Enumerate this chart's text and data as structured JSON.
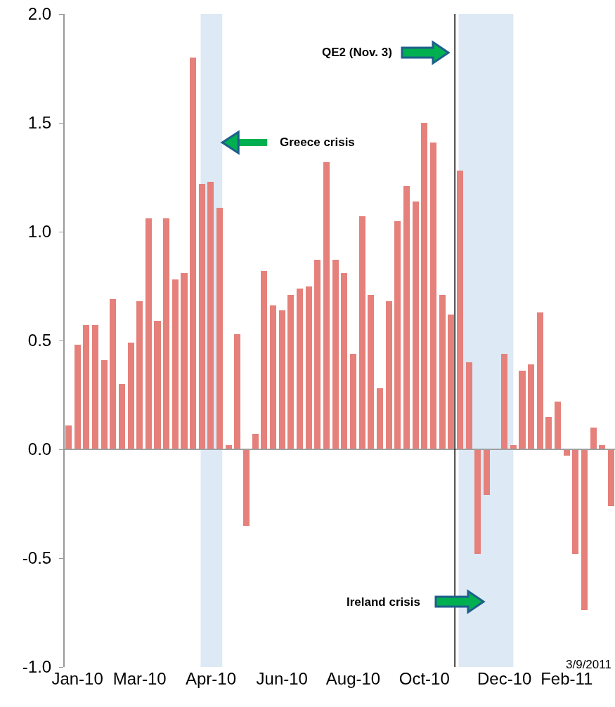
{
  "chart_data": {
    "type": "bar",
    "x": [
      "2010-01-06",
      "2010-01-13",
      "2010-01-20",
      "2010-01-27",
      "2010-02-03",
      "2010-02-10",
      "2010-02-17",
      "2010-02-24",
      "2010-03-03",
      "2010-03-10",
      "2010-03-17",
      "2010-03-24",
      "2010-03-31",
      "2010-04-07",
      "2010-04-14",
      "2010-04-21",
      "2010-04-28",
      "2010-05-05",
      "2010-05-12",
      "2010-05-19",
      "2010-05-26",
      "2010-06-02",
      "2010-06-09",
      "2010-06-16",
      "2010-06-23",
      "2010-06-30",
      "2010-07-07",
      "2010-07-14",
      "2010-07-21",
      "2010-07-28",
      "2010-08-04",
      "2010-08-11",
      "2010-08-18",
      "2010-08-25",
      "2010-09-01",
      "2010-09-08",
      "2010-09-15",
      "2010-09-22",
      "2010-09-29",
      "2010-10-06",
      "2010-10-13",
      "2010-10-20",
      "2010-10-27",
      "2010-11-03",
      "2010-11-10",
      "2010-11-17",
      "2010-11-24",
      "2010-12-01",
      "2010-12-08",
      "2010-12-15",
      "2010-12-22",
      "2010-12-29",
      "2011-01-05",
      "2011-01-12",
      "2011-01-19",
      "2011-01-26",
      "2011-02-02",
      "2011-02-09",
      "2011-02-16",
      "2011-02-23",
      "2011-03-02",
      "2011-03-09"
    ],
    "values": [
      0.11,
      0.48,
      0.57,
      0.57,
      0.41,
      0.69,
      0.3,
      0.49,
      0.68,
      1.06,
      0.59,
      1.06,
      0.78,
      0.81,
      1.8,
      1.22,
      1.23,
      1.11,
      0.02,
      0.53,
      -0.35,
      0.07,
      0.82,
      0.66,
      0.64,
      0.71,
      0.74,
      0.75,
      0.87,
      1.32,
      0.87,
      0.81,
      0.44,
      1.07,
      0.71,
      0.28,
      0.68,
      1.05,
      1.21,
      1.14,
      1.5,
      1.41,
      0.71,
      0.62,
      1.28,
      0.4,
      -0.48,
      -0.21,
      0,
      0.44,
      0.02,
      0.36,
      0.39,
      0.63,
      0.15,
      0.22,
      -0.03,
      -0.48,
      -0.74,
      0.1,
      0.02,
      -0.26
    ],
    "color": "#e5807b",
    "xlim": [
      "2010-01-03",
      "2011-03-12"
    ],
    "xticks": [
      {
        "value": "2010-01-13",
        "label": "Jan-10"
      },
      {
        "value": "2010-03-03",
        "label": "Mar-10"
      },
      {
        "value": "2010-04-28",
        "label": "Apr-10"
      },
      {
        "value": "2010-06-23",
        "label": "Jun-10"
      },
      {
        "value": "2010-08-18",
        "label": "Aug-10"
      },
      {
        "value": "2010-10-13",
        "label": "Oct-10"
      },
      {
        "value": "2010-12-15",
        "label": "Dec-10"
      },
      {
        "value": "2011-02-02",
        "label": "Feb-11"
      }
    ],
    "ylim": [
      -1,
      2
    ],
    "yticks": [
      {
        "value": -1,
        "label": "-1.0"
      },
      {
        "value": -0.5,
        "label": "-0.5"
      },
      {
        "value": 0,
        "label": "0.0"
      },
      {
        "value": 0.5,
        "label": "0.5"
      },
      {
        "value": 1,
        "label": "1.0"
      },
      {
        "value": 1.5,
        "label": "1.5"
      },
      {
        "value": 2,
        "label": "2.0"
      }
    ],
    "bands": [
      {
        "axis": "x",
        "from": "2010-04-20",
        "to": "2010-05-07",
        "color": "#dde9f5"
      },
      {
        "axis": "x",
        "from": "2010-11-09",
        "to": "2010-12-22",
        "color": "#dde9f5"
      }
    ],
    "ref_lines": [
      {
        "axis": "x",
        "value": "2010-11-06",
        "color": "#000000"
      }
    ],
    "annotations": [
      {
        "text": "Greece crisis",
        "x": "2010-05-07",
        "y": 1.41
      },
      "QE2 (Nov. 3)",
      "Ireland crisis",
      "3/9/2011"
    ]
  }
}
